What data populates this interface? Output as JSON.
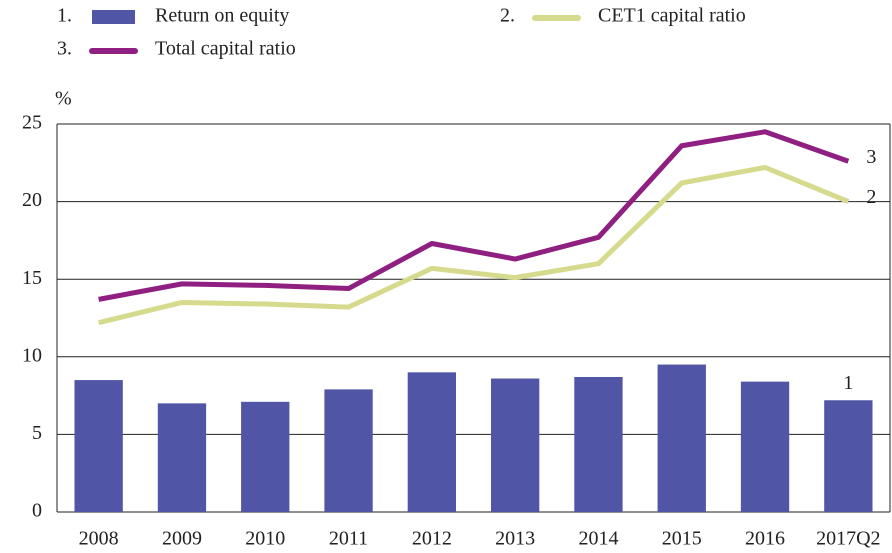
{
  "chart_data": {
    "type": "combo",
    "y_label": "%",
    "categories": [
      "2008",
      "2009",
      "2010",
      "2011",
      "2012",
      "2013",
      "2014",
      "2015",
      "2016",
      "2017Q2"
    ],
    "series": [
      {
        "name": "Return on equity",
        "label": "1.",
        "end_label": "1",
        "type": "bar",
        "color": "#5155a5",
        "values": [
          8.5,
          7.0,
          7.1,
          7.9,
          9.0,
          8.6,
          8.7,
          9.5,
          8.4,
          7.2
        ]
      },
      {
        "name": "CET1 capital ratio",
        "label": "2.",
        "end_label": "2",
        "type": "line",
        "color": "#d5da8c",
        "values": [
          12.2,
          13.5,
          13.4,
          13.2,
          15.7,
          15.1,
          16.0,
          21.2,
          22.2,
          20.0
        ]
      },
      {
        "name": "Total capital ratio",
        "label": "3.",
        "end_label": "3",
        "type": "line",
        "color": "#8f1f80",
        "values": [
          13.7,
          14.7,
          14.6,
          14.4,
          17.3,
          16.3,
          17.7,
          23.6,
          24.5,
          22.6
        ]
      }
    ],
    "ylim": [
      0,
      25
    ],
    "yticks": [
      0,
      5,
      10,
      15,
      20,
      25
    ],
    "grid": true
  }
}
